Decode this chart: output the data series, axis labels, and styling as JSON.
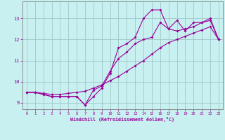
{
  "xlabel": "Windchill (Refroidissement éolien,°C)",
  "bg_color": "#c8f0f0",
  "grid_color": "#a0c8c8",
  "line_color": "#990099",
  "xlim": [
    -0.5,
    23.5
  ],
  "ylim": [
    8.7,
    13.8
  ],
  "xticks": [
    0,
    1,
    2,
    3,
    4,
    5,
    6,
    7,
    8,
    9,
    10,
    11,
    12,
    13,
    14,
    15,
    16,
    17,
    18,
    19,
    20,
    21,
    22,
    23
  ],
  "yticks": [
    9,
    10,
    11,
    12,
    13
  ],
  "line1_x": [
    0,
    1,
    2,
    3,
    4,
    5,
    6,
    7,
    8,
    9,
    10,
    11,
    12,
    13,
    14,
    15,
    16,
    17,
    18,
    19,
    20,
    21,
    22,
    23
  ],
  "line1_y": [
    9.5,
    9.5,
    9.4,
    9.3,
    9.3,
    9.3,
    9.3,
    8.9,
    9.3,
    9.7,
    10.4,
    11.6,
    11.8,
    12.1,
    13.0,
    13.4,
    13.4,
    12.5,
    12.9,
    12.4,
    12.8,
    12.8,
    13.0,
    12.0
  ],
  "line2_x": [
    0,
    1,
    2,
    3,
    4,
    5,
    6,
    7,
    8,
    9,
    10,
    11,
    12,
    13,
    14,
    15,
    16,
    17,
    18,
    19,
    20,
    21,
    22,
    23
  ],
  "line2_y": [
    9.5,
    9.5,
    9.4,
    9.3,
    9.3,
    9.3,
    9.3,
    8.9,
    9.6,
    9.8,
    10.5,
    11.1,
    11.4,
    11.8,
    12.0,
    12.1,
    12.8,
    12.5,
    12.4,
    12.5,
    12.6,
    12.8,
    12.9,
    12.0
  ],
  "line3_x": [
    0,
    1,
    2,
    3,
    4,
    5,
    6,
    7,
    8,
    9,
    10,
    11,
    12,
    13,
    14,
    15,
    16,
    17,
    18,
    19,
    20,
    21,
    22,
    23
  ],
  "line3_y": [
    9.5,
    9.5,
    9.45,
    9.4,
    9.4,
    9.45,
    9.5,
    9.55,
    9.7,
    9.85,
    10.05,
    10.25,
    10.5,
    10.75,
    11.0,
    11.3,
    11.6,
    11.85,
    12.0,
    12.15,
    12.3,
    12.45,
    12.6,
    12.0
  ]
}
